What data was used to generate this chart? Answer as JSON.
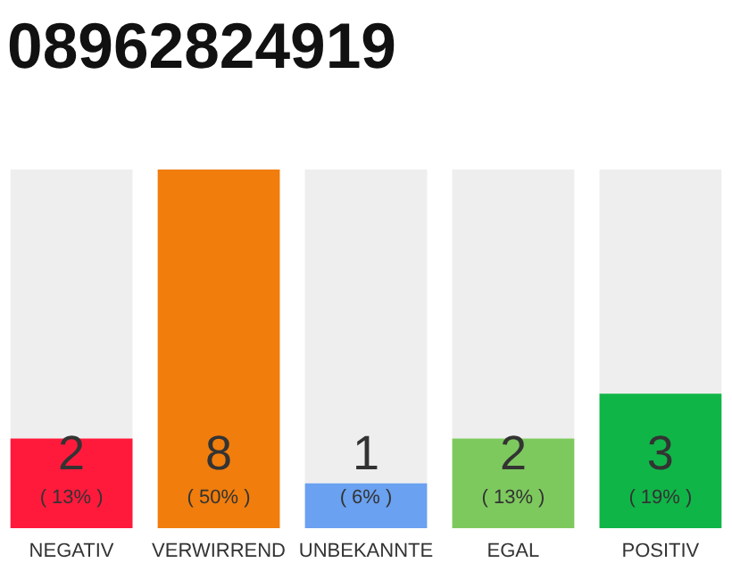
{
  "chart_data": {
    "type": "bar",
    "title": "08962824919",
    "categories": [
      "NEGATIV",
      "VERWIRREND",
      "UNBEKANNTE",
      "EGAL",
      "POSITIV"
    ],
    "values": [
      2,
      8,
      1,
      2,
      3
    ],
    "colors": [
      "#ff1a3c",
      "#f07d0c",
      "#6aa1f0",
      "#7dc95e",
      "#10b547"
    ],
    "data_labels": true,
    "annotations": [
      "( 13% )",
      "( 50% )",
      "( 6% )",
      "( 13% )",
      "( 19% )"
    ]
  }
}
